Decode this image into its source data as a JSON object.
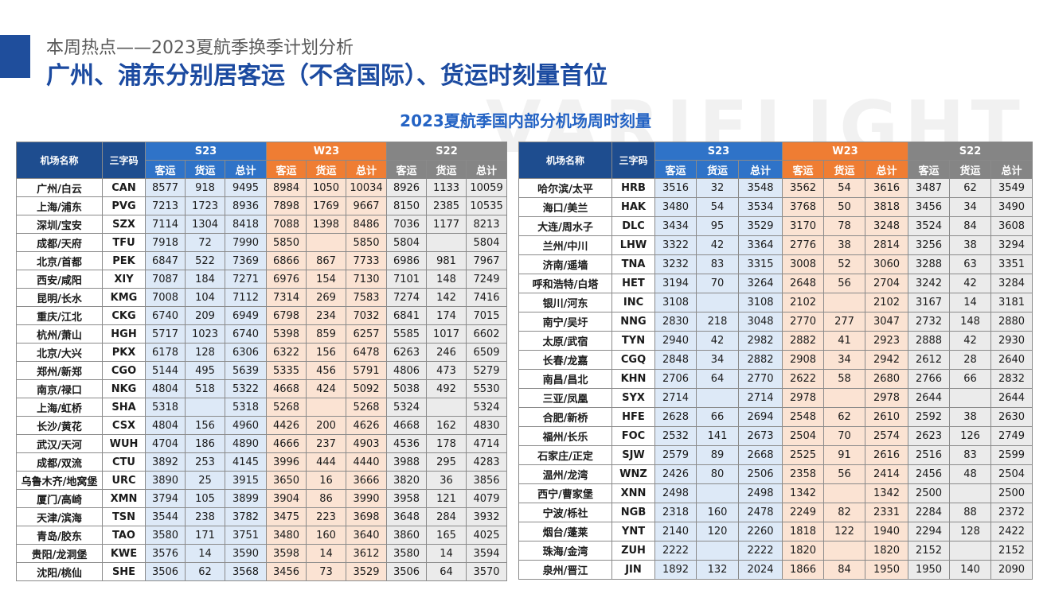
{
  "header": {
    "subtitle": "本周热点——2023夏航季换季计划分析",
    "title": "广州、浦东分别居客运（不含国际）、货运时刻量首位",
    "watermark": "VARIFLIGHT"
  },
  "table_title": "2023夏航季国内部分机场周时刻量",
  "columns": {
    "airport": "机场名称",
    "code": "三字码",
    "groups": [
      "S23",
      "W23",
      "S22"
    ],
    "sub": [
      "客运",
      "货运",
      "总计"
    ]
  },
  "colors": {
    "s23": "#2f73c8",
    "w23": "#ef7d33",
    "s22": "#858585",
    "navy": "#1e4d8f",
    "title_blue": "#1b4aa0"
  },
  "left_rows": [
    [
      "广州/白云",
      "CAN",
      "8577",
      "918",
      "9495",
      "8984",
      "1050",
      "10034",
      "8926",
      "1133",
      "10059"
    ],
    [
      "上海/浦东",
      "PVG",
      "7213",
      "1723",
      "8936",
      "7898",
      "1769",
      "9667",
      "8150",
      "2385",
      "10535"
    ],
    [
      "深圳/宝安",
      "SZX",
      "7114",
      "1304",
      "8418",
      "7088",
      "1398",
      "8486",
      "7036",
      "1177",
      "8213"
    ],
    [
      "成都/天府",
      "TFU",
      "7918",
      "72",
      "7990",
      "5850",
      "",
      "5850",
      "5804",
      "",
      "5804"
    ],
    [
      "北京/首都",
      "PEK",
      "6847",
      "522",
      "7369",
      "6866",
      "867",
      "7733",
      "6986",
      "981",
      "7967"
    ],
    [
      "西安/咸阳",
      "XIY",
      "7087",
      "184",
      "7271",
      "6976",
      "154",
      "7130",
      "7101",
      "148",
      "7249"
    ],
    [
      "昆明/长水",
      "KMG",
      "7008",
      "104",
      "7112",
      "7314",
      "269",
      "7583",
      "7274",
      "142",
      "7416"
    ],
    [
      "重庆/江北",
      "CKG",
      "6740",
      "209",
      "6949",
      "6798",
      "234",
      "7032",
      "6841",
      "174",
      "7015"
    ],
    [
      "杭州/萧山",
      "HGH",
      "5717",
      "1023",
      "6740",
      "5398",
      "859",
      "6257",
      "5585",
      "1017",
      "6602"
    ],
    [
      "北京/大兴",
      "PKX",
      "6178",
      "128",
      "6306",
      "6322",
      "156",
      "6478",
      "6263",
      "246",
      "6509"
    ],
    [
      "郑州/新郑",
      "CGO",
      "5144",
      "495",
      "5639",
      "5335",
      "456",
      "5791",
      "4806",
      "473",
      "5279"
    ],
    [
      "南京/禄口",
      "NKG",
      "4804",
      "518",
      "5322",
      "4668",
      "424",
      "5092",
      "5038",
      "492",
      "5530"
    ],
    [
      "上海/虹桥",
      "SHA",
      "5318",
      "",
      "5318",
      "5268",
      "",
      "5268",
      "5324",
      "",
      "5324"
    ],
    [
      "长沙/黄花",
      "CSX",
      "4804",
      "156",
      "4960",
      "4426",
      "200",
      "4626",
      "4668",
      "162",
      "4830"
    ],
    [
      "武汉/天河",
      "WUH",
      "4704",
      "186",
      "4890",
      "4666",
      "237",
      "4903",
      "4536",
      "178",
      "4714"
    ],
    [
      "成都/双流",
      "CTU",
      "3892",
      "253",
      "4145",
      "3996",
      "444",
      "4440",
      "3988",
      "295",
      "4283"
    ],
    [
      "乌鲁木齐/地窝堡",
      "URC",
      "3890",
      "25",
      "3915",
      "3650",
      "16",
      "3666",
      "3820",
      "36",
      "3856"
    ],
    [
      "厦门/高崎",
      "XMN",
      "3794",
      "105",
      "3899",
      "3904",
      "86",
      "3990",
      "3958",
      "121",
      "4079"
    ],
    [
      "天津/滨海",
      "TSN",
      "3544",
      "238",
      "3782",
      "3475",
      "223",
      "3698",
      "3648",
      "284",
      "3932"
    ],
    [
      "青岛/胶东",
      "TAO",
      "3580",
      "171",
      "3751",
      "3480",
      "160",
      "3640",
      "3860",
      "165",
      "4025"
    ],
    [
      "贵阳/龙洞堡",
      "KWE",
      "3576",
      "14",
      "3590",
      "3598",
      "14",
      "3612",
      "3580",
      "14",
      "3594"
    ],
    [
      "沈阳/桃仙",
      "SHE",
      "3506",
      "62",
      "3568",
      "3456",
      "73",
      "3529",
      "3506",
      "64",
      "3570"
    ]
  ],
  "right_rows": [
    [
      "哈尔滨/太平",
      "HRB",
      "3516",
      "32",
      "3548",
      "3562",
      "54",
      "3616",
      "3487",
      "62",
      "3549"
    ],
    [
      "海口/美兰",
      "HAK",
      "3480",
      "54",
      "3534",
      "3768",
      "50",
      "3818",
      "3456",
      "34",
      "3490"
    ],
    [
      "大连/周水子",
      "DLC",
      "3434",
      "95",
      "3529",
      "3170",
      "78",
      "3248",
      "3524",
      "84",
      "3608"
    ],
    [
      "兰州/中川",
      "LHW",
      "3322",
      "42",
      "3364",
      "2776",
      "38",
      "2814",
      "3256",
      "38",
      "3294"
    ],
    [
      "济南/遥墙",
      "TNA",
      "3232",
      "83",
      "3315",
      "3008",
      "52",
      "3060",
      "3288",
      "63",
      "3351"
    ],
    [
      "呼和浩特/白塔",
      "HET",
      "3194",
      "70",
      "3264",
      "2648",
      "56",
      "2704",
      "3242",
      "42",
      "3284"
    ],
    [
      "银川/河东",
      "INC",
      "3108",
      "",
      "3108",
      "2102",
      "",
      "2102",
      "3167",
      "14",
      "3181"
    ],
    [
      "南宁/吴圩",
      "NNG",
      "2830",
      "218",
      "3048",
      "2770",
      "277",
      "3047",
      "2732",
      "148",
      "2880"
    ],
    [
      "太原/武宿",
      "TYN",
      "2940",
      "42",
      "2982",
      "2882",
      "41",
      "2923",
      "2888",
      "42",
      "2930"
    ],
    [
      "长春/龙嘉",
      "CGQ",
      "2848",
      "34",
      "2882",
      "2908",
      "34",
      "2942",
      "2612",
      "28",
      "2640"
    ],
    [
      "南昌/昌北",
      "KHN",
      "2706",
      "64",
      "2770",
      "2622",
      "58",
      "2680",
      "2766",
      "66",
      "2832"
    ],
    [
      "三亚/凤凰",
      "SYX",
      "2714",
      "",
      "2714",
      "2978",
      "",
      "2978",
      "2644",
      "",
      "2644"
    ],
    [
      "合肥/新桥",
      "HFE",
      "2628",
      "66",
      "2694",
      "2548",
      "62",
      "2610",
      "2592",
      "38",
      "2630"
    ],
    [
      "福州/长乐",
      "FOC",
      "2532",
      "141",
      "2673",
      "2504",
      "70",
      "2574",
      "2623",
      "126",
      "2749"
    ],
    [
      "石家庄/正定",
      "SJW",
      "2579",
      "89",
      "2668",
      "2525",
      "91",
      "2616",
      "2516",
      "83",
      "2599"
    ],
    [
      "温州/龙湾",
      "WNZ",
      "2426",
      "80",
      "2506",
      "2358",
      "56",
      "2414",
      "2456",
      "48",
      "2504"
    ],
    [
      "西宁/曹家堡",
      "XNN",
      "2498",
      "",
      "2498",
      "1342",
      "",
      "1342",
      "2500",
      "",
      "2500"
    ],
    [
      "宁波/栎社",
      "NGB",
      "2318",
      "160",
      "2478",
      "2249",
      "82",
      "2331",
      "2284",
      "88",
      "2372"
    ],
    [
      "烟台/蓬莱",
      "YNT",
      "2140",
      "120",
      "2260",
      "1818",
      "122",
      "1940",
      "2294",
      "128",
      "2422"
    ],
    [
      "珠海/金湾",
      "ZUH",
      "2222",
      "",
      "2222",
      "1820",
      "",
      "1820",
      "2152",
      "",
      "2152"
    ],
    [
      "泉州/晋江",
      "JIN",
      "1892",
      "132",
      "2024",
      "1866",
      "84",
      "1950",
      "1950",
      "140",
      "2090"
    ]
  ]
}
